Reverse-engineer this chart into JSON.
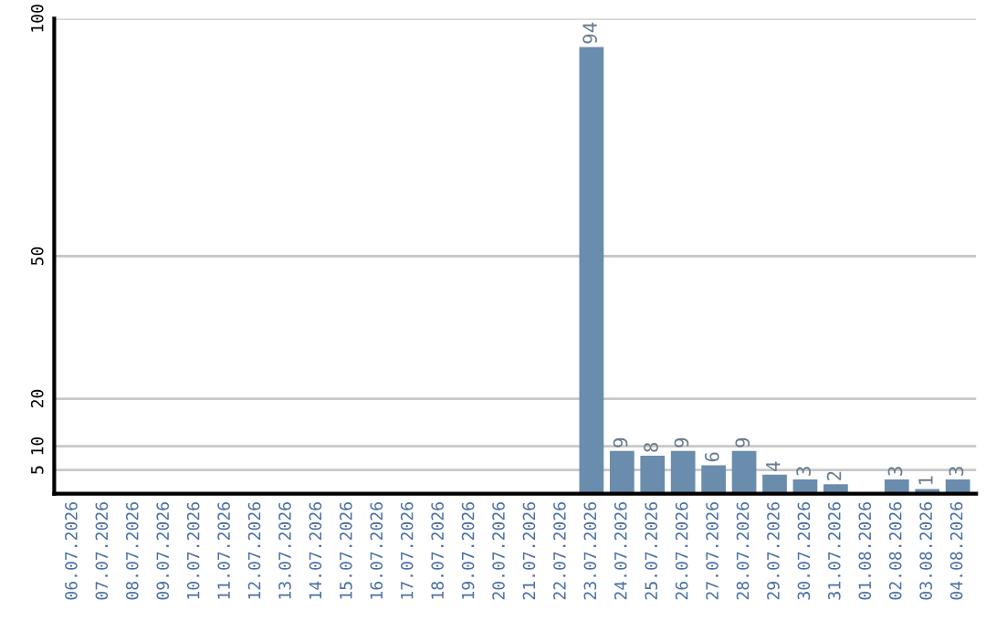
{
  "chart_data": {
    "type": "bar",
    "categories": [
      "06.07.2026",
      "07.07.2026",
      "08.07.2026",
      "09.07.2026",
      "10.07.2026",
      "11.07.2026",
      "12.07.2026",
      "13.07.2026",
      "14.07.2026",
      "15.07.2026",
      "16.07.2026",
      "17.07.2026",
      "18.07.2026",
      "19.07.2026",
      "20.07.2026",
      "21.07.2026",
      "22.07.2026",
      "23.07.2026",
      "24.07.2026",
      "25.07.2026",
      "26.07.2026",
      "27.07.2026",
      "28.07.2026",
      "29.07.2026",
      "30.07.2026",
      "31.07.2026",
      "01.08.2026",
      "02.08.2026",
      "03.08.2026",
      "04.08.2026"
    ],
    "values": [
      0,
      0,
      0,
      0,
      0,
      0,
      0,
      0,
      0,
      0,
      0,
      0,
      0,
      0,
      0,
      0,
      0,
      94,
      9,
      8,
      9,
      6,
      9,
      4,
      3,
      2,
      0,
      3,
      1,
      3
    ],
    "value_labels": [
      null,
      null,
      null,
      null,
      null,
      null,
      null,
      null,
      null,
      null,
      null,
      null,
      null,
      null,
      null,
      null,
      null,
      "94",
      "9",
      "8",
      "9",
      "6",
      "9",
      "4",
      "3",
      "2",
      null,
      "3",
      "1",
      "3"
    ],
    "color": "#6a8cad",
    "ylim": [
      0,
      100
    ],
    "yticks": [
      5,
      10,
      20,
      50,
      100
    ],
    "grid": "y"
  }
}
